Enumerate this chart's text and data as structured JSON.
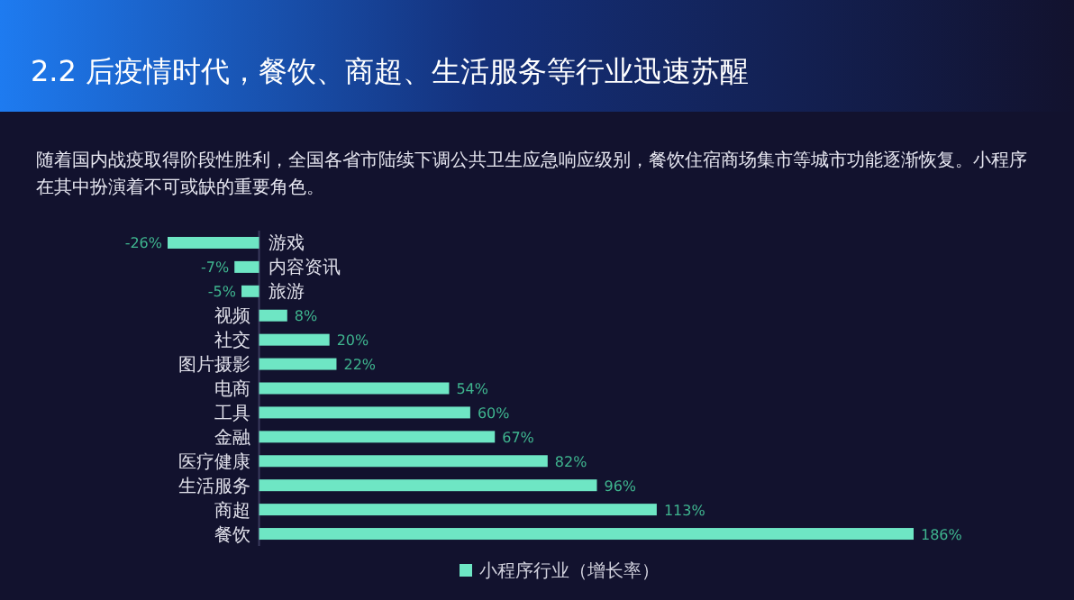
{
  "chart_data": {
    "type": "bar",
    "orientation": "horizontal",
    "title": "2.2 后疫情时代，餐饮、商超、生活服务等行业迅速苏醒",
    "subtitle": "随着国内战疫取得阶段性胜利，全国各省市陆续下调公共卫生应急响应级别，餐饮住宿商场集市等城市功能逐渐恢复。小程序在其中扮演着不可或缺的重要角色。",
    "categories": [
      "游戏",
      "内容资讯",
      "旅游",
      "视频",
      "社交",
      "图片摄影",
      "电商",
      "工具",
      "金融",
      "医疗健康",
      "生活服务",
      "商超",
      "餐饮"
    ],
    "series": [
      {
        "name": "小程序行业（增长率）",
        "color": "#6ee6c4",
        "values": [
          -26,
          -7,
          -5,
          8,
          20,
          22,
          54,
          60,
          67,
          82,
          96,
          113,
          186
        ],
        "value_labels": [
          "-26%",
          "-7%",
          "-5%",
          "8%",
          "20%",
          "22%",
          "54%",
          "60%",
          "67%",
          "82%",
          "96%",
          "113%",
          "186%"
        ]
      }
    ],
    "legend": "bottom"
  }
}
